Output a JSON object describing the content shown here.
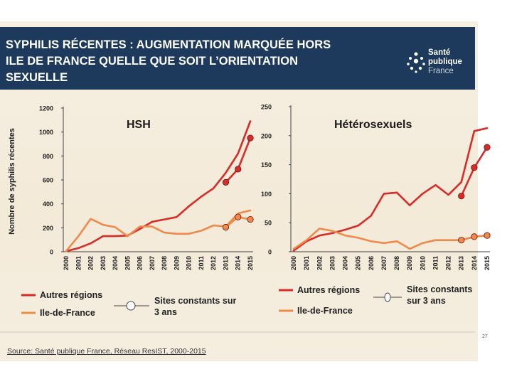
{
  "header": {
    "title_lines": [
      "SYPHILIS RÉCENTES : AUGMENTATION MARQUÉE HORS",
      "ILE DE FRANCE QUELLE QUE SOIT L’ORIENTATION",
      "SEXUELLE"
    ],
    "logo_lines": [
      "Santé",
      "publique",
      "France"
    ]
  },
  "colors": {
    "autres": "#d92b27",
    "idf": "#f08a4b",
    "banner": "#1d3a5c"
  },
  "y_axis_label": "Nombre de syphilis récentes",
  "chart_data": [
    {
      "type": "line",
      "title": "HSH",
      "categories": [
        "2000",
        "2001",
        "2002",
        "2003",
        "2004",
        "2005",
        "2006",
        "2007",
        "2008",
        "2009",
        "2010",
        "2011",
        "2012",
        "2013",
        "2014",
        "2015"
      ],
      "ylim": [
        0,
        1200
      ],
      "yticks": [
        "0",
        "200",
        "400",
        "600",
        "800",
        "1000",
        "1200"
      ],
      "series": [
        {
          "name": "Autres régions",
          "values": [
            5,
            30,
            70,
            130,
            130,
            135,
            190,
            250,
            270,
            290,
            380,
            460,
            530,
            660,
            820,
            1090
          ]
        },
        {
          "name": "Ile-de-France",
          "values": [
            5,
            130,
            275,
            225,
            205,
            130,
            210,
            210,
            160,
            150,
            150,
            175,
            220,
            210,
            320,
            345
          ]
        }
      ],
      "markers": [
        {
          "series": "Autres régions",
          "points": [
            [
              2013,
              580
            ],
            [
              2014,
              690
            ],
            [
              2015,
              950
            ]
          ]
        },
        {
          "series": "Ile-de-France",
          "points": [
            [
              2013,
              205
            ],
            [
              2014,
              290
            ],
            [
              2015,
              270
            ]
          ]
        }
      ]
    },
    {
      "type": "line",
      "title": "Hétérosexuels",
      "categories": [
        "2000",
        "2001",
        "2002",
        "2003",
        "2004",
        "2005",
        "2006",
        "2007",
        "2008",
        "2009",
        "2010",
        "2011",
        "2012",
        "2013",
        "2014",
        "2015"
      ],
      "ylim": [
        0,
        250
      ],
      "yticks": [
        "0",
        "50",
        "100",
        "150",
        "200",
        "250"
      ],
      "series": [
        {
          "name": "Autres régions",
          "values": [
            2,
            18,
            28,
            32,
            38,
            45,
            62,
            100,
            102,
            80,
            100,
            115,
            98,
            120,
            208,
            213
          ]
        },
        {
          "name": "Ile-de-France",
          "values": [
            5,
            20,
            40,
            36,
            28,
            24,
            18,
            15,
            18,
            5,
            15,
            20,
            20,
            20,
            26,
            28
          ]
        }
      ],
      "markers": [
        {
          "series": "Autres régions",
          "points": [
            [
              2013,
              96
            ],
            [
              2014,
              145
            ],
            [
              2015,
              180
            ]
          ]
        },
        {
          "series": "Ile-de-France",
          "points": [
            [
              2013,
              20
            ],
            [
              2014,
              26
            ],
            [
              2015,
              28
            ]
          ]
        }
      ]
    }
  ],
  "legend": {
    "autres": "Autres régions",
    "idf": "Ile-de-France",
    "sites_left": [
      "Sites constants sur",
      "3 ans"
    ],
    "sites_right": [
      "Sites constants",
      "sur 3 ans"
    ]
  },
  "page_number": "27",
  "source": "Source: Santé publique France, Réseau ResIST, 2000-2015"
}
